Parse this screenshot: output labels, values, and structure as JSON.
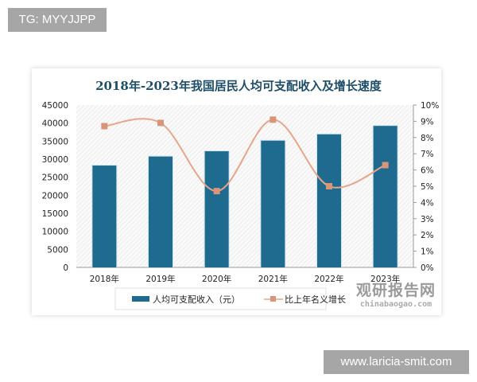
{
  "tag_label": "TG: MYYJJPP",
  "site_label": "www.laricia-smit.com",
  "watermark": {
    "cn": "观研报告网",
    "en": "chinabaogao.com"
  },
  "colors": {
    "bar": "#1f6a8f",
    "line": "#e8a58a",
    "marker": "#d9957a",
    "title": "#1f4e68"
  },
  "chart_data": {
    "type": "bar+line",
    "title": "2018年-2023年我国居民人均可支配收入及增长速度",
    "categories": [
      "2018年",
      "2019年",
      "2020年",
      "2021年",
      "2022年",
      "2023年"
    ],
    "series": [
      {
        "name": "人均可支配收入（元）",
        "type": "bar",
        "axis": "left",
        "values": [
          28228,
          30733,
          32189,
          35128,
          36883,
          39218
        ]
      },
      {
        "name": "比上年名义增长",
        "type": "line",
        "axis": "right",
        "smooth": true,
        "values": [
          8.7,
          8.9,
          4.7,
          9.1,
          5.0,
          6.3
        ]
      }
    ],
    "y_left": {
      "ylim": [
        0,
        45000
      ],
      "ticks": [
        "0",
        "5000",
        "10000",
        "15000",
        "20000",
        "25000",
        "30000",
        "35000",
        "40000",
        "45000"
      ]
    },
    "y_right": {
      "ylim": [
        0,
        10
      ],
      "ticks": [
        "0%",
        "1%",
        "2%",
        "3%",
        "4%",
        "5%",
        "6%",
        "7%",
        "8%",
        "9%",
        "10%"
      ]
    },
    "legend": "bottom",
    "grid": false
  }
}
